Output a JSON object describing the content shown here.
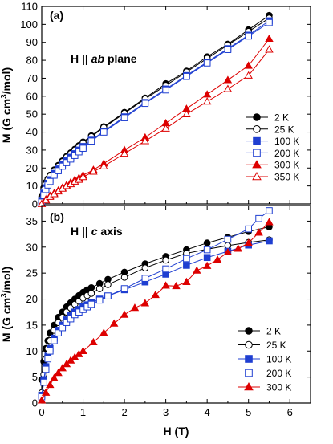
{
  "chart_data": [
    {
      "type": "line",
      "panel_label": "(a)",
      "annotation": "H || ab plane",
      "annotation_parts": [
        "H || ",
        "ab",
        " plane"
      ],
      "xlabel": "",
      "ylabel": "M (G cm³/mol)",
      "ylabel_parts": [
        "M (G cm",
        "3",
        "/mol)"
      ],
      "xlim": [
        0,
        6.5
      ],
      "ylim": [
        0,
        110
      ],
      "xticks": [
        0,
        1,
        2,
        3,
        4,
        5,
        6
      ],
      "yticks": [
        0,
        10,
        20,
        30,
        40,
        50,
        60,
        70,
        80,
        90,
        100,
        110
      ],
      "show_x_tick_labels": false,
      "legend_position": "center-right",
      "series": [
        {
          "name": "2 K",
          "color": "#000000",
          "marker": "circle",
          "filled": true,
          "x": [
            0.0,
            0.05,
            0.1,
            0.15,
            0.2,
            0.3,
            0.4,
            0.5,
            0.6,
            0.7,
            0.8,
            0.9,
            1.0,
            1.2,
            1.5,
            2.0,
            2.5,
            3.0,
            3.5,
            4.0,
            4.5,
            5.0,
            5.5
          ],
          "y": [
            4,
            9,
            12,
            14,
            16,
            19,
            21.5,
            24,
            26.5,
            28.5,
            30.5,
            32.5,
            34.5,
            38,
            43,
            51,
            59,
            67,
            74,
            82,
            89,
            97,
            105
          ]
        },
        {
          "name": "25 K",
          "color": "#000000",
          "marker": "circle",
          "filled": false,
          "x": [
            0.0,
            0.05,
            0.1,
            0.15,
            0.2,
            0.3,
            0.4,
            0.5,
            0.6,
            0.7,
            0.8,
            0.9,
            1.0,
            1.2,
            1.5,
            2.0,
            2.5,
            3.0,
            3.5,
            4.0,
            4.5,
            5.0,
            5.5
          ],
          "y": [
            3,
            8,
            11,
            13.5,
            15.5,
            18.5,
            21,
            23.5,
            26,
            28,
            30,
            32,
            34,
            37.5,
            42.5,
            50.5,
            58.5,
            66,
            73.5,
            81,
            88.5,
            96,
            103.5
          ]
        },
        {
          "name": "100 K",
          "color": "#1f3fd1",
          "marker": "square",
          "filled": true,
          "x": [
            0.0,
            0.05,
            0.1,
            0.15,
            0.2,
            0.3,
            0.4,
            0.5,
            0.6,
            0.7,
            0.8,
            0.9,
            1.0,
            1.2,
            1.5,
            2.0,
            2.5,
            3.0,
            3.5,
            4.0,
            4.5,
            5.0,
            5.5
          ],
          "y": [
            2,
            6,
            9,
            11.5,
            13.5,
            17,
            19.5,
            22,
            24,
            26,
            28,
            30,
            32,
            35.5,
            40.5,
            48.5,
            56.5,
            64,
            71.5,
            79,
            86.5,
            94,
            102
          ]
        },
        {
          "name": "200 K",
          "color": "#1f3fd1",
          "marker": "square",
          "filled": false,
          "x": [
            0.0,
            0.05,
            0.1,
            0.15,
            0.2,
            0.3,
            0.4,
            0.5,
            0.6,
            0.7,
            0.8,
            0.9,
            1.0,
            1.2,
            1.5,
            2.0,
            2.5,
            3.0,
            3.5,
            4.0,
            4.5,
            5.0,
            5.5
          ],
          "y": [
            1,
            5,
            8,
            10.5,
            12.5,
            16,
            18.5,
            21,
            23,
            25,
            27,
            29,
            31,
            35,
            40,
            48,
            56,
            63.5,
            71,
            78.5,
            86,
            93.5,
            101
          ]
        },
        {
          "name": "300 K",
          "color": "#dd0000",
          "marker": "triangle",
          "filled": true,
          "x": [
            0.0,
            0.1,
            0.2,
            0.3,
            0.4,
            0.5,
            0.6,
            0.7,
            0.8,
            0.9,
            1.0,
            1.25,
            1.5,
            2.0,
            2.5,
            3.0,
            3.5,
            4.0,
            4.5,
            5.0,
            5.5
          ],
          "y": [
            0,
            2.5,
            4.5,
            6,
            7.5,
            9,
            10.5,
            12,
            13.5,
            14.5,
            16,
            19,
            22.5,
            30,
            37,
            45,
            53,
            61,
            69,
            77,
            92
          ]
        },
        {
          "name": "350 K",
          "color": "#dd0000",
          "marker": "triangle",
          "filled": false,
          "x": [
            0.0,
            0.1,
            0.2,
            0.3,
            0.4,
            0.5,
            0.6,
            0.7,
            0.8,
            0.9,
            1.0,
            1.25,
            1.5,
            2.0,
            2.5,
            3.0,
            3.5,
            4.0,
            4.5,
            5.0,
            5.5
          ],
          "y": [
            0,
            2,
            4,
            5.5,
            7,
            8.5,
            10,
            11,
            12.5,
            13.5,
            15,
            18,
            21,
            28,
            35,
            42,
            50,
            57,
            64,
            71.5,
            86
          ]
        }
      ]
    },
    {
      "type": "line",
      "panel_label": "(b)",
      "annotation": "H || c axis",
      "annotation_parts": [
        "H || ",
        "c",
        " axis"
      ],
      "xlabel": "H (T)",
      "ylabel": "M (G cm³/mol)",
      "ylabel_parts": [
        "M (G cm",
        "3",
        "/mol)"
      ],
      "xlim": [
        0,
        6.5
      ],
      "ylim": [
        0,
        38
      ],
      "xticks": [
        0,
        1,
        2,
        3,
        4,
        5,
        6
      ],
      "yticks": [
        0,
        5,
        10,
        15,
        20,
        25,
        30,
        35
      ],
      "show_x_tick_labels": true,
      "legend_position": "lower-right",
      "series": [
        {
          "name": "2 K",
          "color": "#000000",
          "marker": "circle",
          "filled": true,
          "x": [
            0.0,
            0.05,
            0.1,
            0.15,
            0.2,
            0.3,
            0.4,
            0.5,
            0.6,
            0.7,
            0.8,
            0.9,
            1.0,
            1.1,
            1.2,
            1.4,
            1.6,
            2.0,
            2.5,
            3.0,
            3.5,
            4.0,
            4.5,
            5.0,
            5.5
          ],
          "y": [
            4.5,
            8,
            10.5,
            12,
            13.5,
            15,
            16.5,
            17.5,
            18.5,
            19.3,
            20,
            20.7,
            21.3,
            21.8,
            22.2,
            23,
            23.8,
            25.2,
            26.8,
            28.2,
            29.5,
            30.8,
            31.9,
            33,
            33.9
          ]
        },
        {
          "name": "25 K",
          "color": "#000000",
          "marker": "circle",
          "filled": false,
          "x": [
            0.0,
            0.05,
            0.1,
            0.15,
            0.2,
            0.3,
            0.4,
            0.5,
            0.6,
            0.7,
            0.8,
            0.9,
            1.0,
            1.1,
            1.2,
            1.4,
            1.6,
            2.0,
            2.5,
            3.0,
            3.5,
            4.0,
            4.5,
            5.0,
            5.5
          ],
          "y": [
            2,
            5.5,
            8.5,
            10.5,
            12,
            14,
            15.5,
            16.5,
            17.5,
            18.3,
            19,
            19.6,
            20.2,
            20.7,
            21.1,
            22,
            22.8,
            24.2,
            26,
            27.5,
            28.8,
            29.6,
            30.3,
            30.9,
            31.4
          ]
        },
        {
          "name": "100 K",
          "color": "#1f3fd1",
          "marker": "square",
          "filled": true,
          "x": [
            0.0,
            0.05,
            0.1,
            0.15,
            0.2,
            0.3,
            0.4,
            0.5,
            0.6,
            0.7,
            0.8,
            0.9,
            1.0,
            1.1,
            1.2,
            1.4,
            1.6,
            2.0,
            2.5,
            3.0,
            3.5,
            4.0,
            4.5,
            5.0,
            5.5
          ],
          "y": [
            1.5,
            4.5,
            7,
            9,
            10.5,
            12.5,
            14,
            15,
            16,
            16.8,
            17.5,
            18,
            18.5,
            18.9,
            19.3,
            20,
            20.6,
            21.8,
            23.3,
            24.8,
            26.5,
            28,
            29.2,
            30.4,
            31.2
          ]
        },
        {
          "name": "200 K",
          "color": "#1f3fd1",
          "marker": "square",
          "filled": false,
          "x": [
            0.0,
            0.05,
            0.1,
            0.15,
            0.2,
            0.3,
            0.4,
            0.5,
            0.6,
            0.7,
            0.8,
            0.9,
            1.0,
            1.1,
            1.2,
            1.4,
            1.6,
            2.0,
            2.5,
            3.0,
            3.5,
            4.0,
            4.5,
            5.0,
            5.25,
            5.5
          ],
          "y": [
            1.2,
            4,
            6.5,
            8.5,
            10,
            12,
            13.5,
            14.5,
            15.5,
            16.2,
            17,
            17.5,
            18,
            18.5,
            19,
            19.8,
            20.6,
            22,
            24,
            25.8,
            27.8,
            29.5,
            31.5,
            33.5,
            35.5,
            37
          ]
        },
        {
          "name": "300 K",
          "color": "#dd0000",
          "marker": "triangle",
          "filled": true,
          "x": [
            0.0,
            0.1,
            0.2,
            0.3,
            0.4,
            0.5,
            0.6,
            0.7,
            0.8,
            0.9,
            1.0,
            1.25,
            1.5,
            1.75,
            2.0,
            2.25,
            2.5,
            2.75,
            3.0,
            3.25,
            3.5,
            3.75,
            4.0,
            4.25,
            4.5,
            4.75,
            5.0,
            5.25,
            5.5
          ],
          "y": [
            0.5,
            2,
            3.5,
            4.8,
            5.8,
            6.7,
            7.5,
            8.2,
            8.8,
            9.4,
            10,
            11.7,
            13.5,
            15.3,
            17,
            18.3,
            19.2,
            20.8,
            22.6,
            22.5,
            23.3,
            25.5,
            26.4,
            27.6,
            29,
            29.7,
            30.8,
            32.8,
            34.8
          ]
        }
      ]
    }
  ]
}
